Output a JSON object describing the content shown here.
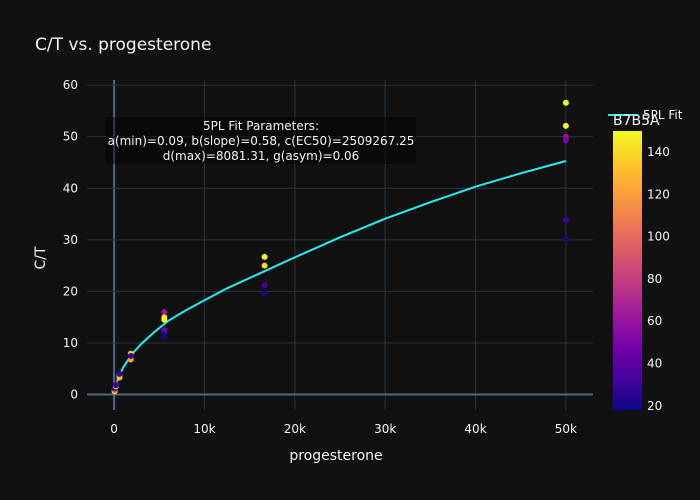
{
  "chart_data": {
    "type": "scatter",
    "title": "C/T vs. progesterone",
    "xlabel": "progesterone",
    "ylabel": "C/T",
    "xlim": [
      -3000,
      53000
    ],
    "ylim": [
      -3,
      61
    ],
    "x_ticks": [
      0,
      10000,
      20000,
      30000,
      40000,
      50000
    ],
    "x_tick_labels": [
      "0",
      "10k",
      "20k",
      "30k",
      "40k",
      "50k"
    ],
    "y_ticks": [
      0,
      10,
      20,
      30,
      40,
      50,
      60
    ],
    "y_tick_labels": [
      "0",
      "10",
      "20",
      "30",
      "40",
      "50",
      "60"
    ],
    "grid": true,
    "points_series": {
      "name": "B7B5A",
      "x": [
        50,
        50,
        50,
        200,
        200,
        200,
        600,
        600,
        600,
        1850,
        1850,
        1850,
        5550,
        5550,
        5550,
        5550,
        5550,
        5550,
        16650,
        16650,
        16650,
        16650,
        50000,
        50000,
        50000,
        50000,
        50000,
        50000
      ],
      "y": [
        0.6,
        0.9,
        1.2,
        1.6,
        2.0,
        1.8,
        3.7,
        3.3,
        4.0,
        7.9,
        6.8,
        7.5,
        16.0,
        15.0,
        14.5,
        12.5,
        11.8,
        11.3,
        26.7,
        25.0,
        21.2,
        19.6,
        56.6,
        52.1,
        50.0,
        49.3,
        33.9,
        30.1
      ],
      "color_values": [
        140,
        100,
        30,
        150,
        60,
        30,
        140,
        130,
        30,
        140,
        120,
        30,
        60,
        140,
        150,
        50,
        30,
        20,
        150,
        140,
        30,
        20,
        150,
        150,
        60,
        50,
        30,
        20
      ]
    },
    "fit_series": {
      "name": "5PL Fit",
      "color": "#1ff1f0",
      "x": [
        0,
        200,
        500,
        1000,
        2000,
        3000,
        4500,
        6000,
        8000,
        10000,
        12500,
        15000,
        17500,
        20000,
        25000,
        30000,
        35000,
        40000,
        45000,
        50000
      ],
      "y": [
        0.1,
        1.8,
        3.4,
        5.2,
        7.9,
        9.8,
        12.2,
        14.3,
        16.4,
        18.3,
        20.6,
        22.6,
        24.6,
        26.6,
        30.5,
        34.1,
        37.3,
        40.3,
        42.9,
        45.3
      ]
    },
    "annotation": {
      "lines": [
        "5PL Fit Parameters:",
        "a(min)=0.09, b(slope)=0.58, c(EC50)=2509267.25",
        "d(max)=8081.31, g(asym)=0.06"
      ]
    },
    "colorbar": {
      "title": "B7B5A",
      "range": [
        18,
        150
      ],
      "ticks": [
        20,
        40,
        60,
        80,
        100,
        120,
        140
      ],
      "tick_labels": [
        "20",
        "40",
        "60",
        "80",
        "100",
        "120",
        "140"
      ],
      "colorscale": [
        "#0d0887",
        "#46039f",
        "#7201a8",
        "#9c179e",
        "#bd3786",
        "#d8576b",
        "#ed7953",
        "#fb9f3a",
        "#fdca26",
        "#f0f921"
      ]
    },
    "legend": {
      "position": "top-right",
      "entries": [
        "5PL Fit"
      ]
    },
    "colors": {
      "background": "#111111",
      "grid": "#283442",
      "text": "#f2f5fa",
      "zero_line": "#506784"
    }
  }
}
